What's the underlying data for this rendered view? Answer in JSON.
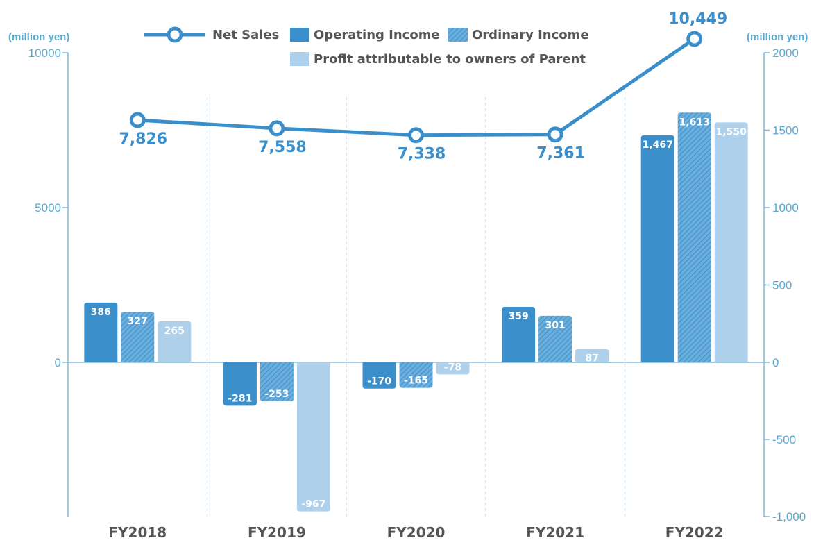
{
  "chart_data": {
    "type": "bar",
    "categories": [
      "FY2018",
      "FY2019",
      "FY2020",
      "FY2021",
      "FY2022"
    ],
    "line_series": {
      "name": "Net Sales",
      "values": [
        7826,
        7558,
        7338,
        7361,
        10449
      ],
      "labels": [
        "7,826",
        "7,558",
        "7,338",
        "7,361",
        "10,449"
      ],
      "axis": "left"
    },
    "series": [
      {
        "name": "Operating Income",
        "values": [
          386,
          -281,
          -170,
          359,
          1467
        ],
        "labels": [
          "386",
          "-281",
          "-170",
          "359",
          "1,467"
        ],
        "axis": "right"
      },
      {
        "name": "Ordinary Income",
        "values": [
          327,
          -253,
          -165,
          301,
          1613
        ],
        "labels": [
          "327",
          "-253",
          "-165",
          "301",
          "1,613"
        ],
        "axis": "right"
      },
      {
        "name": "Profit attributable to owners of Parent",
        "values": [
          265,
          -967,
          -78,
          87,
          1550
        ],
        "labels": [
          "265",
          "-967",
          "-78",
          "87",
          "1,550"
        ],
        "axis": "right"
      }
    ],
    "left_axis": {
      "unit": "(million yen)",
      "ylim": [
        -5000,
        10000
      ],
      "ticks": [
        0,
        5000,
        10000
      ],
      "tick_labels": [
        "0",
        "5000",
        "10000"
      ]
    },
    "right_axis": {
      "unit": "(million yen)",
      "ylim": [
        -1000,
        2000
      ],
      "ticks": [
        -1000,
        -500,
        0,
        500,
        1000,
        1500,
        2000
      ],
      "tick_labels": [
        "-1,000",
        "-500",
        "0",
        "500",
        "1000",
        "1500",
        "2000"
      ]
    },
    "legend": {
      "placement": "top-center"
    },
    "grid": "vertical dashed separators between categories",
    "colors": {
      "line": "#3a8fcb",
      "operating": "#3a8fcb",
      "ordinary": "#5ea4d8",
      "profit": "#aed0ea",
      "axis": "#7fbad8",
      "axis_text": "#5aaad0"
    }
  }
}
